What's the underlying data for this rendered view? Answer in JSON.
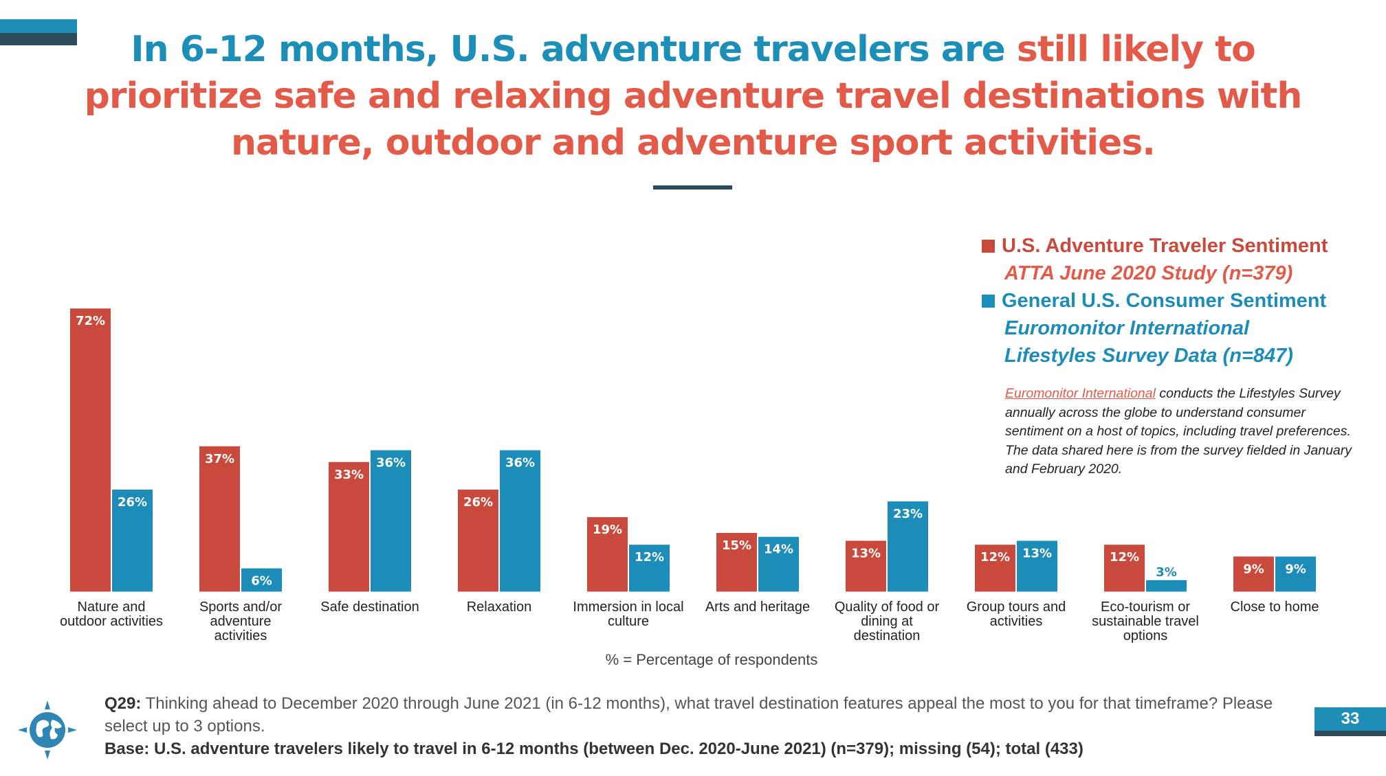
{
  "title": {
    "part1": "In 6-12 months, U.S. adventure travelers are ",
    "part2": "still likely to prioritize safe and relaxing adventure travel destinations with nature, outdoor and adventure sport activities."
  },
  "legend": {
    "series1_name": "U.S. Adventure Traveler Sentiment",
    "series1_source": "ATTA June 2020 Study (n=379)",
    "series2_name": "General U.S. Consumer Sentiment",
    "series2_source_line1": "Euromonitor International",
    "series2_source_line2": "Lifestyles Survey Data (n=847)"
  },
  "note": {
    "link_text": "Euromonitor International",
    "text": " conducts the Lifestyles Survey annually across the globe to understand consumer sentiment on a host of topics, including travel preferences. The data shared here is from the survey fielded in January and February 2020."
  },
  "respondents_label": "% = Percentage of respondents",
  "footer": {
    "question_label": "Q29:",
    "question_text": " Thinking ahead to December 2020 through June 2021 (in 6-12 months), what travel destination features appeal the most to you for that timeframe? Please select up to 3 options.",
    "base_text": "Base: U.S. adventure travelers likely to travel in 6-12 months (between Dec. 2020-June 2021) (n=379); missing (54); total (433)"
  },
  "page_number": "33",
  "colors": {
    "series1": "#c94a3c",
    "series2": "#1c8cb9",
    "title_blue": "#1c8fb8",
    "title_red": "#e35a48"
  },
  "chart_data": {
    "type": "bar",
    "categories": [
      "Nature and outdoor activities",
      "Sports and/or adventure activities",
      "Safe destination",
      "Relaxation",
      "Immersion in local culture",
      "Arts and heritage",
      "Quality of food or dining at destination",
      "Group tours and activities",
      "Eco-tourism or sustainable travel options",
      "Close to home"
    ],
    "category_lines": [
      [
        "Nature and",
        "outdoor activities"
      ],
      [
        "Sports and/or",
        "adventure",
        "activities"
      ],
      [
        "Safe destination"
      ],
      [
        "Relaxation"
      ],
      [
        "Immersion in local",
        "culture"
      ],
      [
        "Arts and heritage"
      ],
      [
        "Quality of food or",
        "dining at",
        "destination"
      ],
      [
        "Group tours and",
        "activities"
      ],
      [
        "Eco-tourism or",
        "sustainable travel",
        "options"
      ],
      [
        "Close to home"
      ]
    ],
    "series": [
      {
        "name": "U.S. Adventure Traveler Sentiment",
        "values": [
          72,
          37,
          33,
          26,
          19,
          15,
          13,
          12,
          12,
          9
        ]
      },
      {
        "name": "General U.S. Consumer Sentiment",
        "values": [
          26,
          6,
          36,
          36,
          12,
          14,
          23,
          13,
          3,
          9
        ]
      }
    ],
    "value_suffix": "%",
    "ylim": [
      0,
      75
    ],
    "grid": false,
    "legend_position": "top-right"
  }
}
